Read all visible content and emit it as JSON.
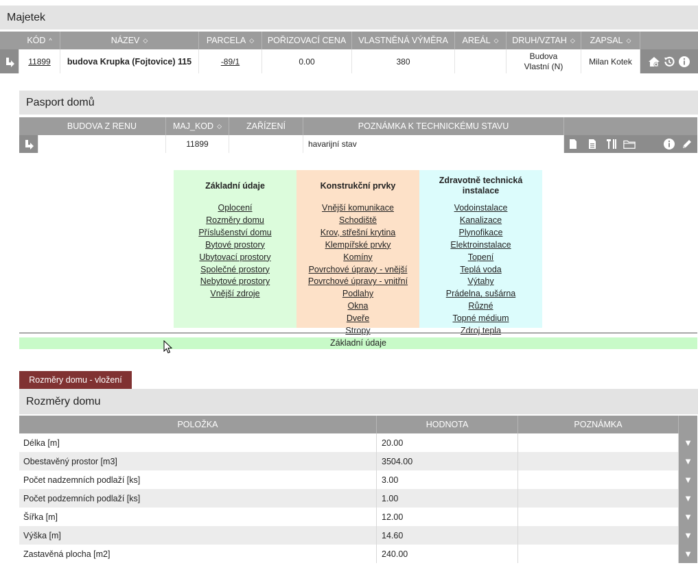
{
  "majetek": {
    "title": "Majetek",
    "columns": [
      "KÓD",
      "NÁZEV",
      "PARCELA",
      "POŘIZOVACÍ CENA",
      "VLASTNĚNÁ VÝMĚRA",
      "AREÁL",
      "DRUH/VZTAH",
      "ZAPSAL"
    ],
    "sort_icons": [
      "^",
      "◇",
      "◇",
      "",
      "",
      "◇",
      "◇",
      "◇"
    ],
    "row": {
      "kod": "11899",
      "nazev": "budova Krupka (Fojtovice) 115",
      "parcela": "-89/1",
      "cena": "0.00",
      "vymera": "380",
      "areal": "",
      "druh_line1": "Budova",
      "druh_line2": "Vlastní (N)",
      "zapsal": "Milan Kotek"
    }
  },
  "pasport": {
    "title": "Pasport domů",
    "columns": [
      "BUDOVA Z RENU",
      "MAJ_KOD",
      "ZAŘÍZENÍ",
      "POZNÁMKA K TECHNICKÉMU STAVU"
    ],
    "row": {
      "budova": "",
      "maj_kod": "11899",
      "zarizeni": "",
      "poznamka": "havarijní stav"
    }
  },
  "categories": [
    {
      "title": "Základní údaje",
      "color": "#dcfcdc",
      "links": [
        "Oplocení",
        "Rozměry domu",
        "Příslušenství domu",
        "Bytové prostory",
        "Ubytovací prostory",
        "Společné prostory",
        "Nebytové prostory",
        "Vnější zdroje"
      ]
    },
    {
      "title": "Konstrukční prvky",
      "color": "#fde1c8",
      "links": [
        "Vnější komunikace",
        "Schodiště",
        "Krov, střešní krytina",
        "Klempířské prvky",
        "Komíny",
        "Povrchové úpravy - vnější",
        "Povrchové úpravy - vnitřní",
        "Podlahy",
        "Okna",
        "Dveře",
        "Stropy"
      ]
    },
    {
      "title": "Zdravotně technická instalace",
      "color": "#dcfcfc",
      "links": [
        "Vodoinstalace",
        "Kanalizace",
        "Plynofikace",
        "Elektroinstalace",
        "Topení",
        "Teplá voda",
        "Výtahy",
        "Prádelna, sušárna",
        "Různé",
        "Topné médium",
        "Zdroj tepla"
      ]
    }
  ],
  "selected_category": "Základní údaje",
  "insert_button": "Rozměry domu - vložení",
  "rozmery": {
    "title": "Rozměry domu",
    "columns": [
      "POLOŽKA",
      "HODNOTA",
      "POZNÁMKA"
    ],
    "rows": [
      {
        "polozka": "Délka [m]",
        "hodnota": "20.00",
        "poznamka": ""
      },
      {
        "polozka": "Obestavěný prostor [m3]",
        "hodnota": "3504.00",
        "poznamka": ""
      },
      {
        "polozka": "Počet nadzemních podlaží [ks]",
        "hodnota": "3.00",
        "poznamka": ""
      },
      {
        "polozka": "Počet podzemních podlaží [ks]",
        "hodnota": "1.00",
        "poznamka": ""
      },
      {
        "polozka": "Šířka [m]",
        "hodnota": "12.00",
        "poznamka": ""
      },
      {
        "polozka": "Výška [m]",
        "hodnota": "14.60",
        "poznamka": ""
      },
      {
        "polozka": "Zastavěná plocha [m2]",
        "hodnota": "240.00",
        "poznamka": ""
      }
    ],
    "row_menu_glyph": "▼"
  },
  "colors": {
    "header_gray": "#9c9c9c",
    "title_gray": "#e3e3e3",
    "insert_button": "#803232",
    "selected_bar": "#c8fac8",
    "row_alt": "#ececec"
  }
}
